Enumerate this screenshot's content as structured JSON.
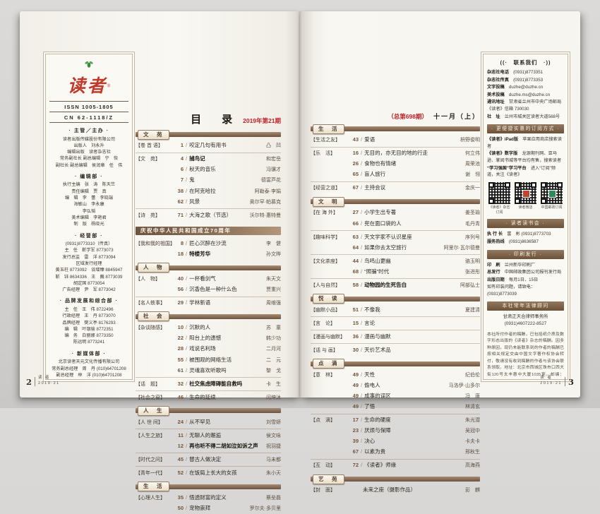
{
  "colors": {
    "accent_red": "#c02128",
    "bar_brown": "#7c5f46",
    "logo_red": "#bf3a2b"
  },
  "meta": {
    "toc_title": "目　录",
    "issue_label": "2019年第21期",
    "issue_no": "（总第698期）",
    "month_label": "十一月（上）"
  },
  "left_page": {
    "masthead": {
      "logo": "读者",
      "reg": "®",
      "issn": "ISSN 1005-1805",
      "cn": "CN 62-1118/Z",
      "sections": [
        {
          "h": "主管／主办",
          "lines": [
            "读者出版传媒股份有限公司",
            "出版人　刘永升",
            "编辑出版　读者杂志社",
            "常务副社长 副总编辑　宁　恢",
            "副社长 副总编辑　侯润章　任　伟"
          ]
        },
        {
          "h": "编辑部",
          "lines": [
            "执行主编　张　涛　陈天竺",
            "责任编辑　贾　真",
            "编　辑　李　蕾　李晓端",
            "海敏山　李永康",
            "李弘韬",
            "美术编辑　李艳君",
            "制　版　杨晓光"
          ]
        },
        {
          "h": "经营部",
          "lines": [
            "(0931)8773310（传真）",
            "主　任　靳学军 8773073",
            "发行总监　雷　洋 8773094",
            "区域发行经理",
            "黄玉柱 8773092　谈增臻 8845947",
            "靳　钰 8634336　王　巍 8773039",
            "胡定国 8773054",
            "广告经理　尹　军 8773042"
          ]
        },
        {
          "h": "品牌发展和综合部",
          "lines": [
            "主　任　王　伟 8722496",
            "行政经理　王　丹 8773070",
            "品牌经理　樊义亭 8176293",
            "编　辑　叶银瑜 8772351",
            "编　务　白丽娜 8773350",
            "陈远明 8773241"
          ]
        },
        {
          "h": "新媒体部",
          "lines": [
            "北京读者天元文化传播有限公司",
            "常务副总经理　周　丹 (010)64701208",
            "副总经理　林　洋 (010)64701208"
          ]
        }
      ]
    },
    "toc_sections": [
      {
        "bar": "文　苑",
        "bar_type": "tab",
        "entries": [
          {
            "cat": "卷 首 语",
            "page": "1",
            "title": "咬定几句有用书",
            "author": "凸　凹"
          },
          {
            "cat": "文　苑",
            "page": "4",
            "title": "捕鸟记",
            "author": "和宏岳",
            "bold": true
          },
          {
            "cat": "",
            "page": "6",
            "title": "秋天的音乐",
            "author": "冯骥才"
          },
          {
            "cat": "",
            "page": "7",
            "title": "鬼",
            "author": "德富芦花"
          },
          {
            "cat": "",
            "page": "38",
            "title": "在阿克哈拉",
            "author": "阿勒泰·李娟"
          },
          {
            "cat": "",
            "page": "62",
            "title": "风景",
            "author": "奥尔罕·帕慕克"
          },
          {
            "cat": "诗　苑",
            "page": "71",
            "title": "大海之歌（节选）",
            "author": "沃尔特·惠特曼"
          }
        ]
      },
      {
        "bar": "庆祝中华人民共和国成立70周年",
        "bar_type": "full",
        "entries": [
          {
            "cat": "我和我的祖国",
            "page": "8",
            "title": "匠心沉醉在沙流",
            "author": "李　健"
          },
          {
            "cat": "",
            "page": "18",
            "title": "特楼芳华",
            "author": "孙文晔",
            "bold": true
          }
        ]
      },
      {
        "bar": "人　物",
        "bar_type": "tab",
        "entries": [
          {
            "cat": "人　物",
            "page": "40",
            "title": "一杯看剑气",
            "author": "朱天文"
          },
          {
            "cat": "",
            "page": "56",
            "title": "沉香色是一种什么色",
            "author": "贾重兴"
          },
          {
            "cat": "名人轶事",
            "page": "29",
            "title": "学林新语",
            "author": "周维强"
          }
        ]
      },
      {
        "bar": "社　会",
        "bar_type": "tab",
        "entries": [
          {
            "cat": "杂谈随感",
            "page": "10",
            "title": "沉默的人",
            "author": "苏　童"
          },
          {
            "cat": "",
            "page": "22",
            "title": "阳台上的遗憾",
            "author": "韩少功"
          },
          {
            "cat": "",
            "page": "28",
            "title": "戏说名利场",
            "author": "二月河"
          },
          {
            "cat": "",
            "page": "55",
            "title": "被围观的网络生活",
            "author": "二　元"
          },
          {
            "cat": "",
            "page": "61",
            "title": "灵魂喜欢听歌吗",
            "author": "黎　戈"
          },
          {
            "cat": "话　题",
            "page": "32",
            "title": "社交焦虑障碍能自救吗",
            "author": "卡　生",
            "bold": true
          },
          {
            "cat": "社会之窗",
            "page": "46",
            "title": "生命的延续",
            "author": "闫坤沐"
          }
        ]
      },
      {
        "bar": "人　生",
        "bar_type": "tab",
        "entries": [
          {
            "cat": "人 世 间",
            "page": "24",
            "title": "从不罕见",
            "author": "刘雪妍"
          },
          {
            "cat": "人生之旅",
            "page": "11",
            "title": "无聊人的邂逅",
            "author": "侯文咏"
          },
          {
            "cat": "",
            "page": "12",
            "title": "再也听不得二胡如泣如诉之声",
            "author": "祝羽捷",
            "bold": true
          },
          {
            "cat": "时代之问",
            "page": "45",
            "title": "替古人做决定",
            "author": "马未都"
          },
          {
            "cat": "青年一代",
            "page": "52",
            "title": "在饭局上长大的女孩",
            "author": "朱小天"
          }
        ]
      },
      {
        "bar": "生　活",
        "bar_type": "tab",
        "entries": [
          {
            "cat": "心理人生",
            "page": "35",
            "title": "悟透财富的定义",
            "author": "蔡垒磊"
          },
          {
            "cat": "",
            "page": "50",
            "title": "宠物崇拜",
            "author": "罗尔夫·多贝里"
          }
        ]
      }
    ],
    "footer": {
      "page_no": "2",
      "mag": "读 者",
      "issue": "2019·21"
    }
  },
  "right_page": {
    "toc_sections": [
      {
        "bar": "生　活",
        "bar_type": "tab",
        "entries": [
          {
            "cat": "生活之友",
            "page": "43",
            "title": "爱语",
            "author": "枡野俊明"
          },
          {
            "cat": "乐　活",
            "page": "16",
            "title": "无目的，亦无目的地的行走",
            "author": "何立伟"
          },
          {
            "cat": "",
            "page": "26",
            "title": "食物也有情绪",
            "author": "周荣池"
          },
          {
            "cat": "",
            "page": "65",
            "title": "盲人旅行",
            "author": "谢　翎"
          },
          {
            "cat": "经营之道",
            "page": "67",
            "title": "主持会议",
            "author": "金庆一"
          }
        ]
      },
      {
        "bar": "文　明",
        "bar_type": "tab",
        "entries": [
          {
            "cat": "在 海 外",
            "page": "27",
            "title": "小学生出专著",
            "author": "姜圣瑜"
          },
          {
            "cat": "",
            "page": "66",
            "title": "兜在面口袋的人",
            "author": "毛丹青"
          },
          {
            "cat": "趣味科学",
            "page": "63",
            "title": "天文学家不认识星座",
            "author": "序列号"
          },
          {
            "cat": "",
            "page": "64",
            "title": "如果你去太空旅行",
            "author": "阿里尔·瓦尔德曼"
          },
          {
            "cat": "文化茶座",
            "page": "44",
            "title": "鸟鸣山更幽",
            "author": "骆玉明"
          },
          {
            "cat": "",
            "page": "68",
            "title": "“照骗”时代",
            "author": "张进彤"
          },
          {
            "cat": "人与自然",
            "page": "58",
            "title": "动物园的生死告白",
            "author": "阿部弘士",
            "bold": true
          }
        ]
      },
      {
        "bar": "悦　读",
        "bar_type": "tab",
        "entries": [
          {
            "cat": "幽默小品",
            "page": "51",
            "title": "不像我",
            "author": "夏建清"
          },
          {
            "cat": "言　论",
            "page": "15",
            "title": "言论",
            "author": ""
          },
          {
            "cat": "漫画与幽默",
            "page": "36",
            "title": "漫画与幽默",
            "author": ""
          },
          {
            "cat": "话 与 画",
            "page": "30",
            "title": "天价艺术品",
            "author": ""
          }
        ]
      },
      {
        "bar": "点　滴",
        "bar_type": "tab",
        "entries": [
          {
            "cat": "意　林",
            "page": "49",
            "title": "天性",
            "author": "纪伯伦"
          },
          {
            "cat": "",
            "page": "49",
            "title": "偷电人",
            "author": "马洛伊·山多尔"
          },
          {
            "cat": "",
            "page": "49",
            "title": "成事的误区",
            "author": "冯　唐"
          },
          {
            "cat": "",
            "page": "49",
            "title": "了悟",
            "author": "林清玄"
          },
          {
            "cat": "点　滴",
            "page": "17",
            "title": "生命的硬度",
            "author": "朱光潜"
          },
          {
            "cat": "",
            "page": "23",
            "title": "厌烦与保障",
            "author": "吴冠中"
          },
          {
            "cat": "",
            "page": "39",
            "title": "决心",
            "author": "卡夫卡"
          },
          {
            "cat": "",
            "page": "67",
            "title": "以素为贵",
            "author": "邢秋生"
          }
        ]
      },
      {
        "bar": "",
        "bar_type": "none",
        "entries": [
          {
            "cat": "互　动",
            "page": "72",
            "title": "《读者》师缘",
            "author": "高海燕"
          }
        ]
      },
      {
        "bar": "艺　苑",
        "bar_type": "tab",
        "entries": [
          {
            "cat": "封　面",
            "page": "",
            "title": "未来之座（摄影作品）",
            "author": "彭　麒"
          }
        ]
      }
    ],
    "sidebar": {
      "blocks": [
        {
          "type": "header",
          "text": "((·　联系我们　·))"
        },
        {
          "type": "kv",
          "k": "杂志社电话",
          "v": "(0931)8773351"
        },
        {
          "type": "kv",
          "k": "杂志社传真",
          "v": "(0931)8773353"
        },
        {
          "type": "kv",
          "k": "文字投稿",
          "v": "duzhe@duzhe.cn"
        },
        {
          "type": "kv",
          "k": "美术投稿",
          "v": "duzhe.ms@duzhe.cn"
        },
        {
          "type": "kv",
          "k": "通讯地址",
          "v": "甘肃省兰州市中央广场邮局《读者》信箱 730030"
        },
        {
          "type": "kv",
          "k": "社　址",
          "v": "兰州市城关区读者大道568号"
        },
        {
          "type": "bar",
          "text": "· 更便捷实惠的订阅方式 ·"
        },
        {
          "type": "kv",
          "k": "《读者》iPad版",
          "v": "苹果应用商店搜索读者"
        },
        {
          "type": "kv",
          "k": "《读者》数字版",
          "v": "龙源期刊网、亚马逊、掌阅书城等平台均有售，搜索读者"
        },
        {
          "type": "kv",
          "k": "“学习强国”学习平台",
          "v": "进入“订阅”频道，关注《读者》"
        },
        {
          "type": "qr",
          "items": [
            {
              "cap": "《读者》杂志订阅"
            },
            {
              "cap": "读者微店",
              "c": "#c0452e"
            },
            {
              "cap": "中国邮政订阅",
              "c": "#2e8b57"
            }
          ]
        },
        {
          "type": "bar",
          "text": "· 读者读书会 ·"
        },
        {
          "type": "kv",
          "k": "执 行 长",
          "v": "富　彬 (0931)8773703"
        },
        {
          "type": "kv",
          "k": "服务热线",
          "v": "(0931)8636587"
        },
        {
          "type": "bar",
          "text": "· 印刷发行 ·"
        },
        {
          "type": "kv",
          "k": "印　刷",
          "v": "兰州新华印刷厂"
        },
        {
          "type": "kv",
          "k": "总发行",
          "v": "中国邮政集团公司报刊发行局"
        },
        {
          "type": "kv",
          "k": "出版日期",
          "v": "每月1日、15日"
        },
        {
          "type": "plain",
          "text": "如有印装问题，请致电：(0931)8773039"
        },
        {
          "type": "bar",
          "text": "本社常年法律顾问"
        },
        {
          "type": "center",
          "text": "甘肃正天合律师事务所"
        },
        {
          "type": "center",
          "text": "(0931)4607222-8527"
        },
        {
          "type": "para",
          "text": "本社所付作者的稿酬，已包括纸介质及数字形态出版的《读者》杂志的稿酬。因多种原因，现仍未能联系到的作者的稿酬已按相关规定交由中国文字著作权协会转付，敬请没有收到稿酬的作者与该协会联系领取。地址：北京市西城区珠市口西大街120号太丰惠中大厦1035室。邮编：100050。电话：010-65978917。传真：010-65978926。e-mail：wenzhuxie@126.com。"
        },
        {
          "type": "foot",
          "text": "另有《读者》（盲文版）《读者》（维文版）出版"
        }
      ]
    },
    "footer": {
      "page_no": "3",
      "mag": "读 者",
      "issue": "2019·21"
    }
  }
}
